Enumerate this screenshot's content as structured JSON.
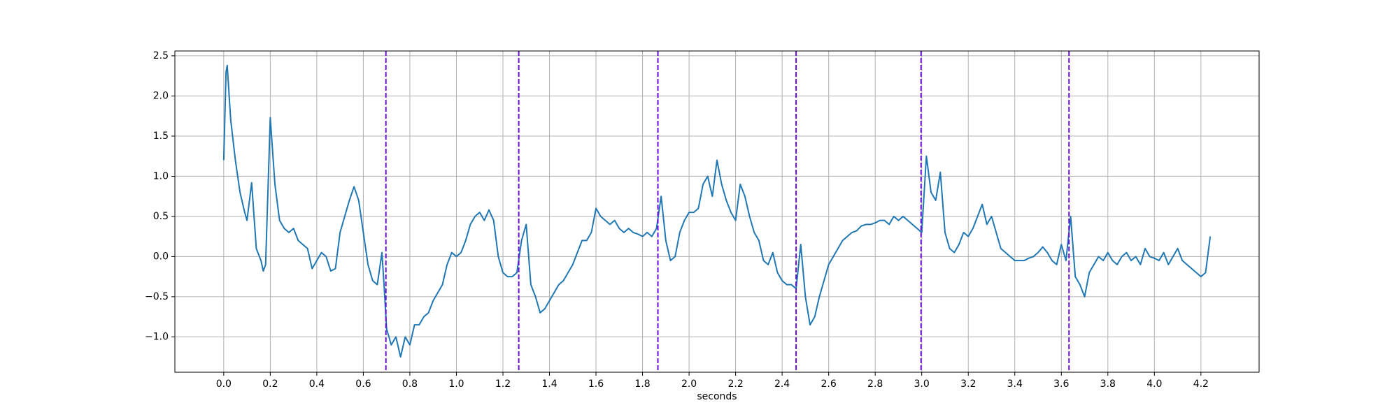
{
  "chart_data": {
    "type": "line",
    "xlabel": "seconds",
    "x": [
      0.0,
      0.01,
      0.015,
      0.03,
      0.05,
      0.07,
      0.09,
      0.1,
      0.12,
      0.14,
      0.16,
      0.17,
      0.18,
      0.2,
      0.22,
      0.24,
      0.26,
      0.28,
      0.3,
      0.32,
      0.34,
      0.36,
      0.38,
      0.4,
      0.42,
      0.44,
      0.46,
      0.48,
      0.5,
      0.52,
      0.54,
      0.56,
      0.58,
      0.6,
      0.62,
      0.64,
      0.66,
      0.68,
      0.69,
      0.7,
      0.72,
      0.74,
      0.76,
      0.78,
      0.8,
      0.82,
      0.84,
      0.86,
      0.88,
      0.9,
      0.92,
      0.94,
      0.96,
      0.98,
      1.0,
      1.02,
      1.04,
      1.06,
      1.08,
      1.1,
      1.12,
      1.14,
      1.16,
      1.18,
      1.2,
      1.22,
      1.24,
      1.26,
      1.28,
      1.3,
      1.32,
      1.34,
      1.36,
      1.38,
      1.4,
      1.42,
      1.44,
      1.46,
      1.48,
      1.5,
      1.52,
      1.54,
      1.56,
      1.58,
      1.6,
      1.62,
      1.64,
      1.66,
      1.68,
      1.7,
      1.72,
      1.74,
      1.76,
      1.78,
      1.8,
      1.82,
      1.84,
      1.86,
      1.88,
      1.9,
      1.92,
      1.94,
      1.96,
      1.98,
      2.0,
      2.02,
      2.04,
      2.06,
      2.08,
      2.1,
      2.12,
      2.14,
      2.16,
      2.18,
      2.2,
      2.22,
      2.24,
      2.26,
      2.28,
      2.3,
      2.32,
      2.34,
      2.36,
      2.38,
      2.4,
      2.42,
      2.44,
      2.46,
      2.48,
      2.5,
      2.52,
      2.54,
      2.56,
      2.58,
      2.6,
      2.62,
      2.64,
      2.66,
      2.68,
      2.7,
      2.72,
      2.74,
      2.76,
      2.78,
      2.8,
      2.82,
      2.84,
      2.86,
      2.88,
      2.9,
      2.92,
      2.94,
      2.96,
      2.98,
      3.0,
      3.02,
      3.04,
      3.06,
      3.08,
      3.1,
      3.12,
      3.14,
      3.16,
      3.18,
      3.2,
      3.22,
      3.24,
      3.26,
      3.28,
      3.3,
      3.32,
      3.34,
      3.36,
      3.38,
      3.4,
      3.42,
      3.44,
      3.46,
      3.48,
      3.5,
      3.52,
      3.54,
      3.56,
      3.58,
      3.6,
      3.62,
      3.64,
      3.66,
      3.68,
      3.7,
      3.72,
      3.74,
      3.76,
      3.78,
      3.8,
      3.82,
      3.84,
      3.86,
      3.88,
      3.9,
      3.92,
      3.94,
      3.96,
      3.98,
      4.0,
      4.02,
      4.04,
      4.06,
      4.08,
      4.1,
      4.12,
      4.14,
      4.16,
      4.18,
      4.2,
      4.22,
      4.24
    ],
    "series": [
      {
        "color": "#1f77b4",
        "values": [
          1.2,
          2.3,
          2.38,
          1.7,
          1.2,
          0.8,
          0.55,
          0.45,
          0.92,
          0.1,
          -0.05,
          -0.18,
          -0.1,
          1.73,
          0.9,
          0.45,
          0.35,
          0.3,
          0.35,
          0.2,
          0.15,
          0.1,
          -0.15,
          -0.05,
          0.05,
          0.0,
          -0.18,
          -0.15,
          0.3,
          0.5,
          0.7,
          0.87,
          0.7,
          0.3,
          -0.1,
          -0.3,
          -0.35,
          0.05,
          -0.4,
          -0.9,
          -1.1,
          -1.0,
          -1.25,
          -1.0,
          -1.1,
          -0.85,
          -0.85,
          -0.75,
          -0.7,
          -0.55,
          -0.45,
          -0.35,
          -0.1,
          0.05,
          0.0,
          0.05,
          0.2,
          0.4,
          0.5,
          0.55,
          0.45,
          0.58,
          0.45,
          0.0,
          -0.2,
          -0.25,
          -0.25,
          -0.2,
          0.2,
          0.4,
          -0.35,
          -0.5,
          -0.7,
          -0.65,
          -0.55,
          -0.45,
          -0.35,
          -0.3,
          -0.2,
          -0.1,
          0.05,
          0.2,
          0.2,
          0.3,
          0.6,
          0.5,
          0.45,
          0.4,
          0.45,
          0.35,
          0.3,
          0.35,
          0.3,
          0.28,
          0.25,
          0.3,
          0.25,
          0.35,
          0.75,
          0.2,
          -0.05,
          0.0,
          0.3,
          0.45,
          0.55,
          0.55,
          0.6,
          0.9,
          1.0,
          0.75,
          1.2,
          0.9,
          0.7,
          0.55,
          0.45,
          0.9,
          0.75,
          0.5,
          0.3,
          0.2,
          -0.05,
          -0.1,
          0.05,
          -0.2,
          -0.3,
          -0.35,
          -0.35,
          -0.4,
          0.15,
          -0.5,
          -0.85,
          -0.75,
          -0.5,
          -0.3,
          -0.1,
          0.0,
          0.1,
          0.2,
          0.25,
          0.3,
          0.32,
          0.38,
          0.4,
          0.4,
          0.42,
          0.45,
          0.45,
          0.4,
          0.5,
          0.45,
          0.5,
          0.45,
          0.4,
          0.35,
          0.3,
          1.25,
          0.8,
          0.7,
          1.05,
          0.3,
          0.1,
          0.05,
          0.15,
          0.3,
          0.25,
          0.35,
          0.5,
          0.65,
          0.4,
          0.5,
          0.3,
          0.1,
          0.05,
          0.0,
          -0.05,
          -0.05,
          -0.05,
          -0.02,
          0.0,
          0.05,
          0.12,
          0.05,
          -0.05,
          -0.1,
          0.15,
          -0.05,
          0.5,
          -0.25,
          -0.35,
          -0.5,
          -0.2,
          -0.1,
          0.0,
          -0.05,
          0.05,
          -0.05,
          -0.1,
          0.0,
          0.05,
          -0.05,
          0.0,
          -0.1,
          0.1,
          0.0,
          -0.02,
          -0.05,
          0.05,
          -0.1,
          0.0,
          0.1,
          -0.05,
          -0.1,
          -0.15,
          -0.2,
          -0.25,
          -0.2,
          0.25
        ]
      }
    ],
    "vlines": {
      "color": "#6a0ee0",
      "values": [
        0.697,
        1.268,
        1.866,
        2.46,
        2.997,
        3.633
      ]
    },
    "xlim": [
      -0.21,
      4.45
    ],
    "ylim": [
      -1.44,
      2.56
    ],
    "xticks": [
      {
        "value": 0,
        "label": "0.0"
      },
      {
        "value": 0.2,
        "label": "0.2"
      },
      {
        "value": 0.4,
        "label": "0.4"
      },
      {
        "value": 0.6,
        "label": "0.6"
      },
      {
        "value": 0.8,
        "label": "0.8"
      },
      {
        "value": 1,
        "label": "1.0"
      },
      {
        "value": 1.2,
        "label": "1.2"
      },
      {
        "value": 1.4,
        "label": "1.4"
      },
      {
        "value": 1.6,
        "label": "1.6"
      },
      {
        "value": 1.8,
        "label": "1.8"
      },
      {
        "value": 2,
        "label": "2.0"
      },
      {
        "value": 2.2,
        "label": "2.2"
      },
      {
        "value": 2.4,
        "label": "2.4"
      },
      {
        "value": 2.6,
        "label": "2.6"
      },
      {
        "value": 2.8,
        "label": "2.8"
      },
      {
        "value": 3,
        "label": "3.0"
      },
      {
        "value": 3.2,
        "label": "3.2"
      },
      {
        "value": 3.4,
        "label": "3.4"
      },
      {
        "value": 3.6,
        "label": "3.6"
      },
      {
        "value": 3.8,
        "label": "3.8"
      },
      {
        "value": 4,
        "label": "4.0"
      },
      {
        "value": 4.2,
        "label": "4.2"
      }
    ],
    "yticks": [
      {
        "value": -1,
        "label": "−1.0"
      },
      {
        "value": -0.5,
        "label": "−0.5"
      },
      {
        "value": 0,
        "label": "0.0"
      },
      {
        "value": 0.5,
        "label": "0.5"
      },
      {
        "value": 1,
        "label": "1.0"
      },
      {
        "value": 1.5,
        "label": "1.5"
      },
      {
        "value": 2,
        "label": "2.0"
      },
      {
        "value": 2.5,
        "label": "2.5"
      }
    ],
    "grid": true
  }
}
